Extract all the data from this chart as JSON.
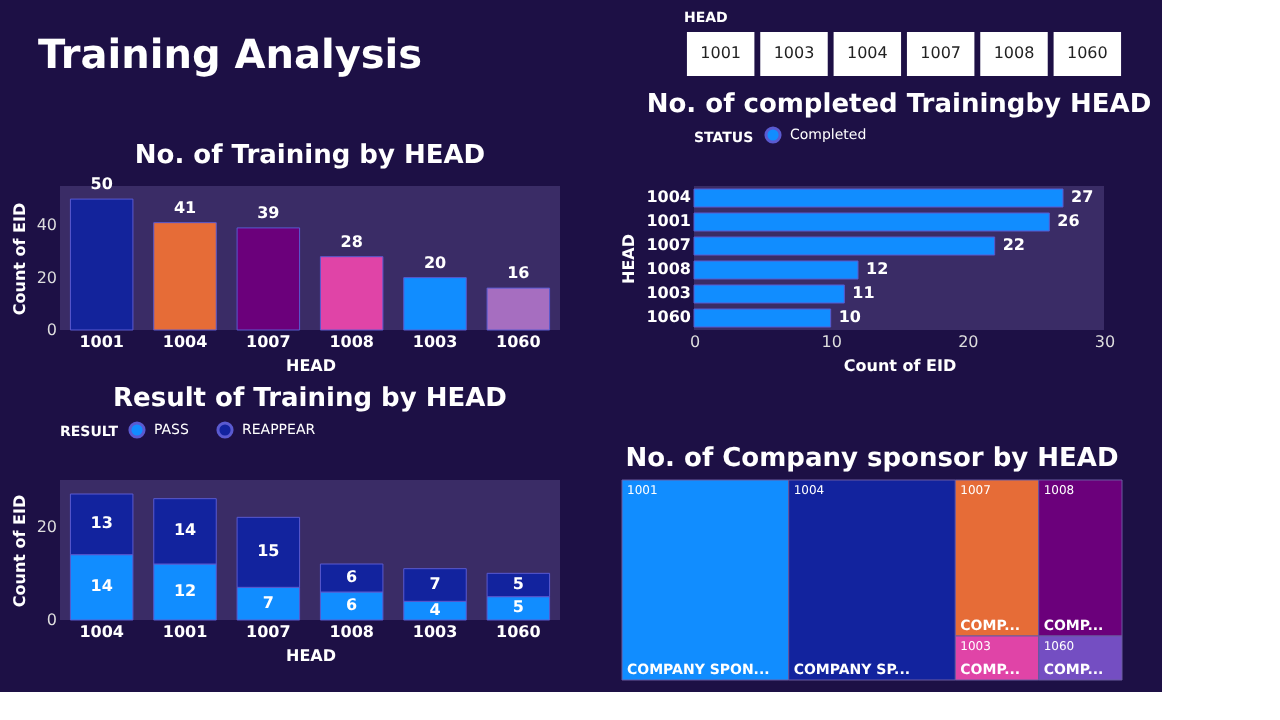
{
  "chart_data": [
    {
      "type": "other",
      "title": "Training Analysis"
    },
    {
      "type": "other",
      "title": "HEAD",
      "categories": [
        "1001",
        "1003",
        "1004",
        "1007",
        "1008",
        "1060"
      ]
    },
    {
      "type": "bar",
      "title": "No. of Training by HEAD",
      "xlabel": "HEAD",
      "ylabel": "Count of EID",
      "categories": [
        "1001",
        "1004",
        "1007",
        "1008",
        "1003",
        "1060"
      ],
      "values": [
        50,
        41,
        39,
        28,
        20,
        16
      ],
      "colors": [
        "#13239b",
        "#e66c37",
        "#6b007b",
        "#e044a7",
        "#118dff",
        "#a66ec0"
      ],
      "ylim": [
        0,
        55
      ],
      "yticks": [
        0,
        20,
        40
      ],
      "data_labels": true
    },
    {
      "type": "bar",
      "orientation": "horizontal",
      "title": "No. of completed Trainingby HEAD",
      "xlabel": "Count of EID",
      "ylabel": "HEAD",
      "legend_title": "STATUS",
      "legend": "top left",
      "categories": [
        "1004",
        "1001",
        "1007",
        "1008",
        "1003",
        "1060"
      ],
      "series": [
        {
          "name": "Completed",
          "color": "#118dff",
          "values": [
            27,
            26,
            22,
            12,
            11,
            10
          ]
        }
      ],
      "xlim": [
        0,
        30
      ],
      "xticks": [
        0,
        10,
        20,
        30
      ],
      "data_labels": true
    },
    {
      "type": "bar",
      "stacked": true,
      "title": "Result of Training by HEAD",
      "xlabel": "HEAD",
      "ylabel": "Count of EID",
      "legend_title": "RESULT",
      "legend": "top left",
      "categories": [
        "1004",
        "1001",
        "1007",
        "1008",
        "1003",
        "1060"
      ],
      "series": [
        {
          "name": "PASS",
          "color": "#118dff",
          "values": [
            14,
            12,
            7,
            6,
            4,
            5
          ]
        },
        {
          "name": "REAPPEAR",
          "color": "#12239e",
          "values": [
            13,
            14,
            15,
            6,
            7,
            5
          ]
        }
      ],
      "ylim": [
        0,
        30
      ],
      "yticks": [
        0,
        20
      ],
      "data_labels": true
    },
    {
      "type": "other",
      "title": "No. of Company sponsor by HEAD",
      "categories": [
        "1001",
        "1004",
        "1007",
        "1008",
        "1003",
        "1060"
      ],
      "colors": [
        "#118dff",
        "#12239e",
        "#e66c37",
        "#6b007b",
        "#e044a7",
        "#744ec2"
      ],
      "value_labels": [
        "COMPANY SPON...",
        "COMPANY SP...",
        "COMP...",
        "COMP...",
        "COMP...",
        "COMP..."
      ]
    }
  ]
}
